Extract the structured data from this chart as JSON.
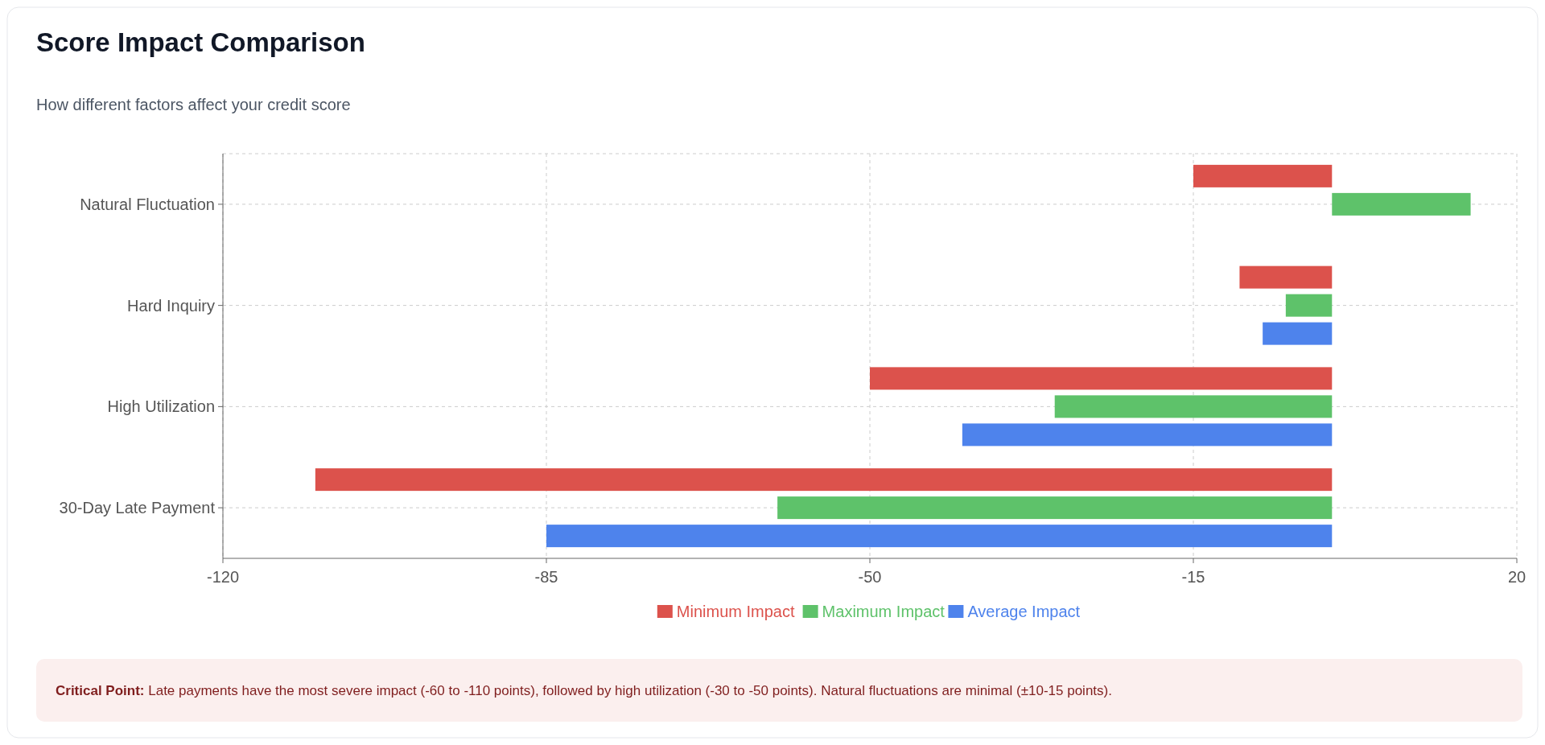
{
  "chart_data": {
    "type": "bar",
    "orientation": "horizontal",
    "title": "Score Impact Comparison",
    "subtitle": "How different factors affect your credit score",
    "categories": [
      "Natural Fluctuation",
      "Hard Inquiry",
      "High Utilization",
      "30-Day Late Payment"
    ],
    "series": [
      {
        "name": "Minimum Impact",
        "color": "#dc524c",
        "values": [
          -15,
          -10,
          -50,
          -110
        ]
      },
      {
        "name": "Maximum Impact",
        "color": "#5ec26a",
        "values": [
          15,
          -5,
          -30,
          -60
        ]
      },
      {
        "name": "Average Impact",
        "color": "#4e83ec",
        "values": [
          0,
          -7.5,
          -40,
          -85
        ]
      }
    ],
    "xlim": [
      -120,
      20
    ],
    "xticks": [
      -120,
      -85,
      -50,
      -15,
      20
    ],
    "grid": true,
    "legend": "bottom",
    "annotations": [
      "Critical Point: Late payments have the most severe impact (-60 to -110 points), followed by high utilization (-30 to -50 points). Natural fluctuations are minimal (±10-15 points)."
    ]
  }
}
